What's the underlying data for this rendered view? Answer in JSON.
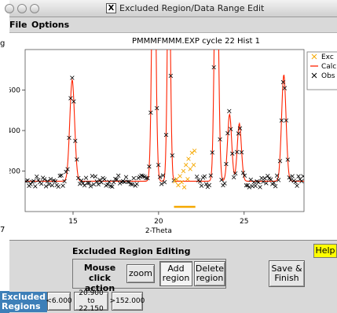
{
  "window": {
    "title": "Excluded Region/Data Range Edit"
  },
  "menubar": {
    "file": "File",
    "options": "Options"
  },
  "desktop": {
    "frag1": "g",
    "frag2": "7"
  },
  "chart_data": {
    "type": "scatter",
    "title": "PMMMFMMM.EXP cycle 22 Hist 1",
    "xlabel": "2-Theta",
    "ylabel": "",
    "xlim": [
      12.2,
      28.5
    ],
    "ylim": [
      0,
      800
    ],
    "xticks": [
      15,
      20,
      25
    ],
    "yticks": [
      200,
      400,
      600
    ],
    "legend": {
      "placement": "top-right",
      "entries": [
        "Exc",
        "Calc",
        "Obs"
      ]
    },
    "colors": {
      "excluded": "#f5a800",
      "calc": "#ff2200",
      "obs": "#000000",
      "region_bar": "#f5a800"
    },
    "baseline": 150,
    "peaks": [
      {
        "center": 14.95,
        "height": 500,
        "width": 0.14
      },
      {
        "center": 19.72,
        "height": 1400,
        "width": 0.11
      },
      {
        "center": 20.6,
        "height": 1150,
        "width": 0.09
      },
      {
        "center": 23.38,
        "height": 1400,
        "width": 0.11
      },
      {
        "center": 24.15,
        "height": 330,
        "width": 0.12
      },
      {
        "center": 24.72,
        "height": 285,
        "width": 0.12
      },
      {
        "center": 27.32,
        "height": 525,
        "width": 0.13
      }
    ],
    "excluded_region": [
      20.9,
      22.15
    ],
    "excluded_points": [
      [
        20.95,
        150
      ],
      [
        21.05,
        160
      ],
      [
        21.15,
        130
      ],
      [
        21.25,
        175
      ],
      [
        21.35,
        145
      ],
      [
        21.45,
        200
      ],
      [
        21.5,
        120
      ],
      [
        21.6,
        230
      ],
      [
        21.7,
        160
      ],
      [
        21.75,
        260
      ],
      [
        21.85,
        210
      ],
      [
        21.95,
        290
      ],
      [
        22.05,
        230
      ],
      [
        22.1,
        300
      ]
    ]
  },
  "controls": {
    "title": "Excluded Region Editing",
    "help": "Help",
    "mouse_click_label": "Mouse click action",
    "zoom": "zoom",
    "add_region": "Add region",
    "delete_region": "Delete region",
    "save_finish": "Save & Finish",
    "excluded_label": "Excluded Regions",
    "regions": [
      "<6.000",
      "20.900 to 22.150",
      ">152.000"
    ]
  }
}
